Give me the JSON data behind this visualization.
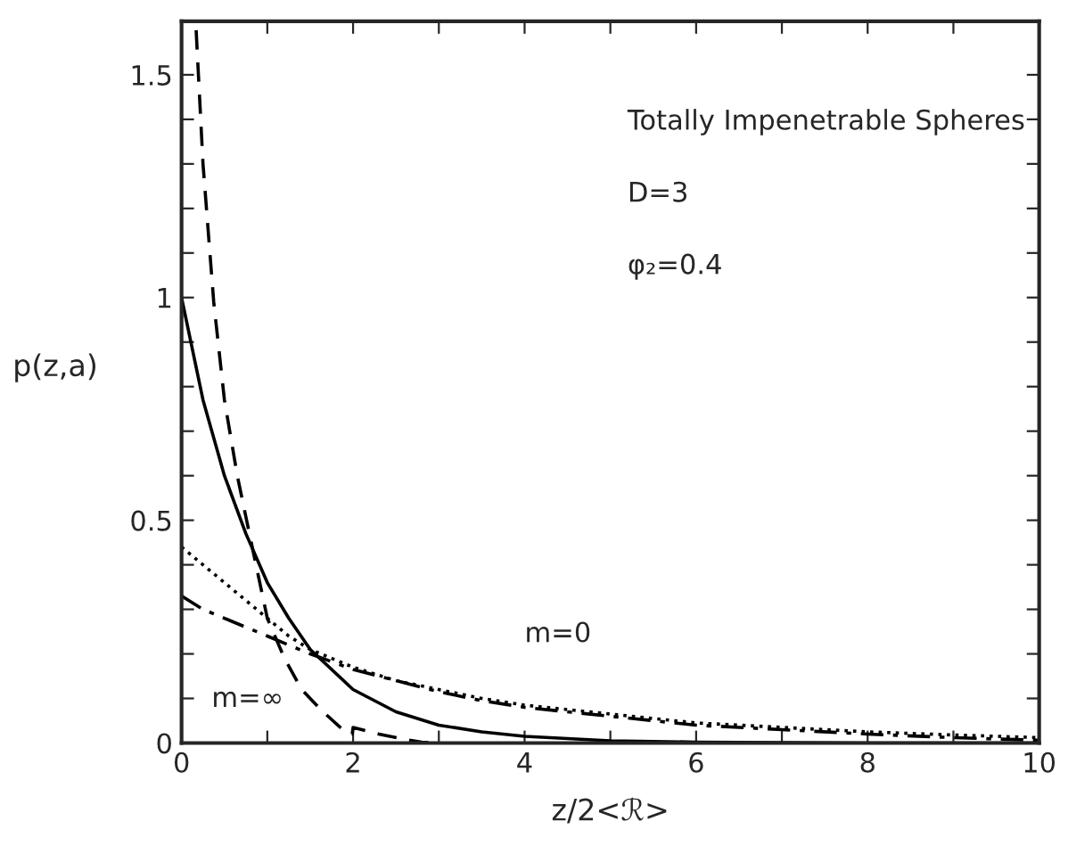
{
  "chart_data": {
    "type": "line",
    "xlabel": "z/2<ℛ>",
    "ylabel": "p(z,a)",
    "x": [
      0,
      0.25,
      0.5,
      0.75,
      1,
      1.25,
      1.5,
      2,
      2.5,
      3,
      3.5,
      4,
      5,
      6,
      7,
      8,
      9,
      10
    ],
    "series": [
      {
        "color": "#000000",
        "line_style": "solid",
        "values": [
          1.0,
          0.77,
          0.6,
          0.47,
          0.36,
          0.28,
          0.21,
          0.12,
          0.07,
          0.04,
          0.025,
          0.015,
          0.005,
          0.002,
          0.001,
          0.0,
          0.0,
          0.0
        ]
      },
      {
        "color": "#000000",
        "line_style": "dotted",
        "values": [
          0.44,
          0.4,
          0.36,
          0.32,
          0.28,
          0.24,
          0.21,
          0.17,
          0.14,
          0.12,
          0.1,
          0.085,
          0.065,
          0.045,
          0.035,
          0.025,
          0.018,
          0.012
        ]
      },
      {
        "color": "#000000",
        "line_style": "dashdot",
        "values": [
          0.33,
          0.3,
          0.28,
          0.26,
          0.24,
          0.22,
          0.2,
          0.165,
          0.14,
          0.115,
          0.095,
          0.08,
          0.06,
          0.04,
          0.03,
          0.02,
          0.012,
          0.006
        ]
      },
      {
        "color": "#000000",
        "line_style": "dashed",
        "x": [
          0.17,
          0.25,
          0.375,
          0.5,
          0.65,
          0.78,
          1.0,
          1.2,
          1.4,
          1.65,
          1.88,
          1.99,
          2.0,
          2.3,
          2.6,
          2.8,
          3.0
        ],
        "values": [
          1.6,
          1.3,
          0.99,
          0.77,
          0.6,
          0.48,
          0.28,
          0.19,
          0.12,
          0.07,
          0.03,
          0.02,
          0.035,
          0.02,
          0.008,
          0.002,
          0.0
        ]
      }
    ],
    "annotations": [
      "Totally Impenetrable Spheres",
      "D=3",
      "φ₂=0.4",
      "m=0",
      "m=∞"
    ],
    "xlim": [
      0,
      10
    ],
    "ylim": [
      0,
      1.62
    ],
    "xticks": [
      0,
      {
        "value": 1,
        "label": null
      },
      2,
      {
        "value": 3,
        "label": null
      },
      4,
      {
        "value": 5,
        "label": null
      },
      6,
      {
        "value": 7,
        "label": null
      },
      8,
      {
        "value": 9,
        "label": null
      },
      10
    ],
    "yticks": [
      0,
      {
        "value": 0.1,
        "label": null
      },
      {
        "value": 0.2,
        "label": null
      },
      {
        "value": 0.3,
        "label": null
      },
      {
        "value": 0.4,
        "label": null
      },
      0.5,
      {
        "value": 0.6,
        "label": null
      },
      {
        "value": 0.7,
        "label": null
      },
      {
        "value": 0.8,
        "label": null
      },
      {
        "value": 0.9,
        "label": null
      },
      1,
      {
        "value": 1.1,
        "label": null
      },
      {
        "value": 1.2,
        "label": null
      },
      {
        "value": 1.3,
        "label": null
      },
      {
        "value": 1.4,
        "label": null
      },
      1.5
    ],
    "grid": false,
    "legend": false
  }
}
